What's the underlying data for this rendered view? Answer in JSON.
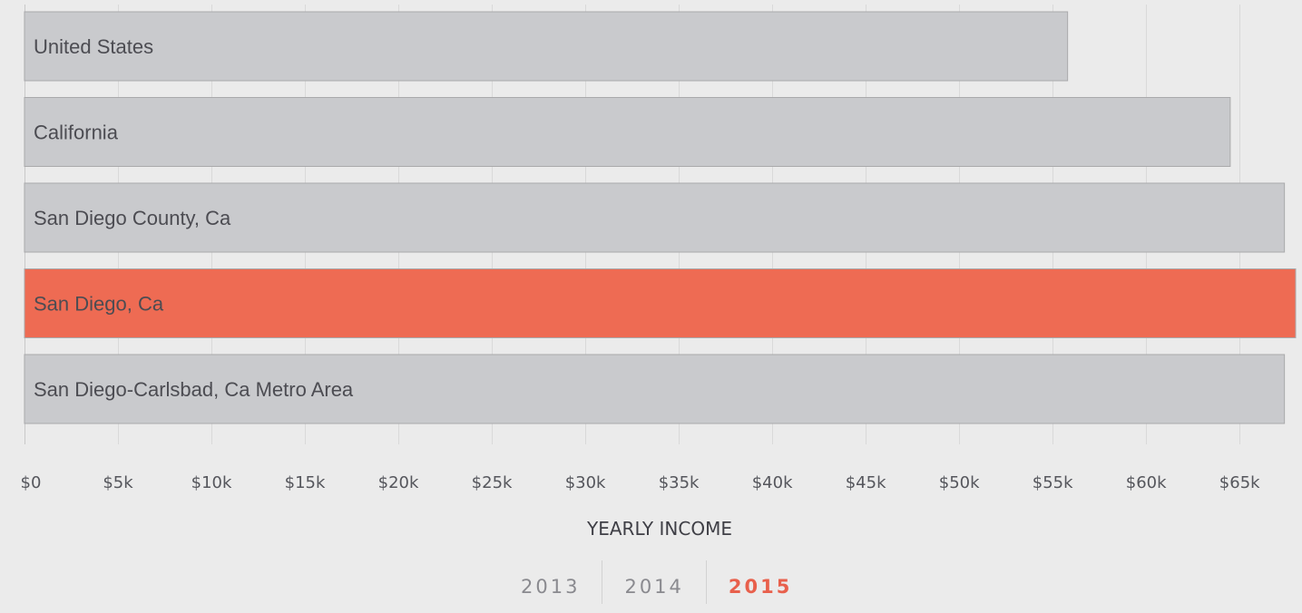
{
  "chart_data": {
    "type": "bar",
    "orientation": "horizontal",
    "categories": [
      "United States",
      "California",
      "San Diego County, Ca",
      "San Diego, Ca",
      "San Diego-Carlsbad, Ca Metro Area"
    ],
    "values": [
      55800,
      64500,
      67400,
      68000,
      67400
    ],
    "highlighted_category": "San Diego, Ca",
    "xlabel": "YEARLY INCOME",
    "xlim": [
      0,
      68000
    ],
    "xticks": [
      0,
      5000,
      10000,
      15000,
      20000,
      25000,
      30000,
      35000,
      40000,
      45000,
      50000,
      55000,
      60000,
      65000
    ],
    "xtick_labels": [
      "$0",
      "$5k",
      "$10k",
      "$15k",
      "$20k",
      "$25k",
      "$30k",
      "$35k",
      "$40k",
      "$45k",
      "$50k",
      "$55k",
      "$60k",
      "$65k"
    ],
    "grid": true,
    "colors": {
      "bar": "#c9cacd",
      "highlight": "#ee6b53",
      "background": "#ebebeb"
    }
  },
  "year_tabs": {
    "items": [
      "2013",
      "2014",
      "2015"
    ],
    "active": "2015"
  }
}
